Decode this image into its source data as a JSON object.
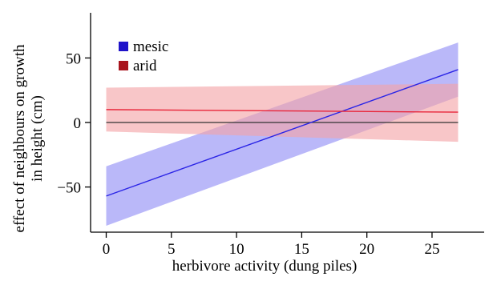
{
  "chart_data": {
    "type": "line",
    "xlabel": "herbivore activity (dung piles)",
    "ylabel_lines": [
      "effect of neighbours on growth",
      "in height (cm)"
    ],
    "xlim": [
      -1.2,
      29
    ],
    "ylim": [
      -85,
      85
    ],
    "xticks": [
      0,
      5,
      10,
      15,
      20,
      25
    ],
    "yticks": [
      -50,
      0,
      50
    ],
    "reference_line_y": 0,
    "legend_position": "top-left",
    "series": [
      {
        "name": "mesic",
        "color": "#2b25e6",
        "band_color": "#8f8df5",
        "x": [
          0,
          27
        ],
        "fit": [
          -57,
          41
        ],
        "lower": [
          -80,
          20
        ],
        "upper": [
          -34,
          62
        ]
      },
      {
        "name": "arid",
        "color": "#e8263a",
        "band_color": "#f3a3a6",
        "x": [
          0,
          27
        ],
        "fit": [
          10,
          8
        ],
        "lower": [
          -7,
          -15
        ],
        "upper": [
          27,
          30
        ]
      }
    ]
  }
}
